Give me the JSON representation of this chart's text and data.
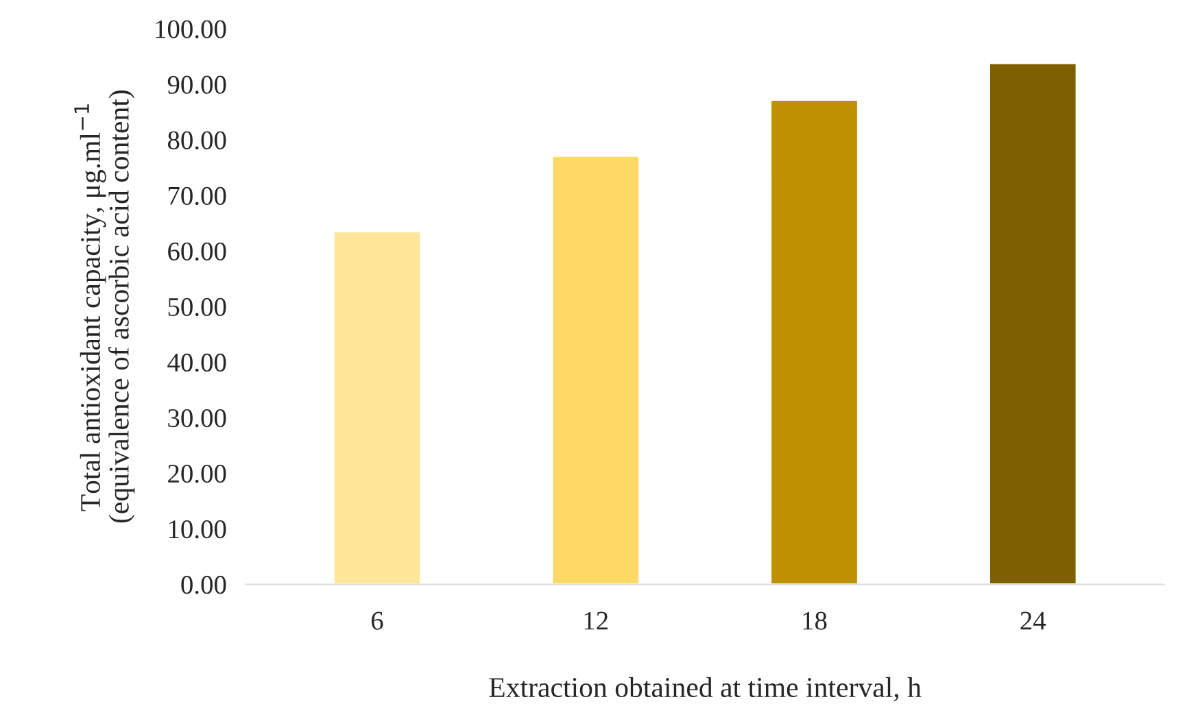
{
  "chart_data": {
    "type": "bar",
    "xlabel": "Extraction obtained at time interval, h",
    "ylabel": "Total antioxidant capacity, μg.ml$^{−1}$\n(equivalence of ascorbic acid content)",
    "categories": [
      "6",
      "12",
      "18",
      "24"
    ],
    "values": [
      63.5,
      77.1,
      87.2,
      93.8
    ],
    "colors": [
      "#ffe699",
      "#ffd966",
      "#bf9000",
      "#7f6000"
    ],
    "ylim": [
      0,
      100
    ],
    "yticks": [
      {
        "value": 0,
        "label": "0.00"
      },
      {
        "value": 10,
        "label": "10.00"
      },
      {
        "value": 20,
        "label": "20.00"
      },
      {
        "value": 30,
        "label": "30.00"
      },
      {
        "value": 40,
        "label": "40.00"
      },
      {
        "value": 50,
        "label": "50.00"
      },
      {
        "value": 60,
        "label": "60.00"
      },
      {
        "value": 70,
        "label": "70.00"
      },
      {
        "value": 80,
        "label": "80.00"
      },
      {
        "value": 90,
        "label": "90.00"
      },
      {
        "value": 100,
        "label": "100.00"
      }
    ],
    "grid": false,
    "legend": false
  }
}
